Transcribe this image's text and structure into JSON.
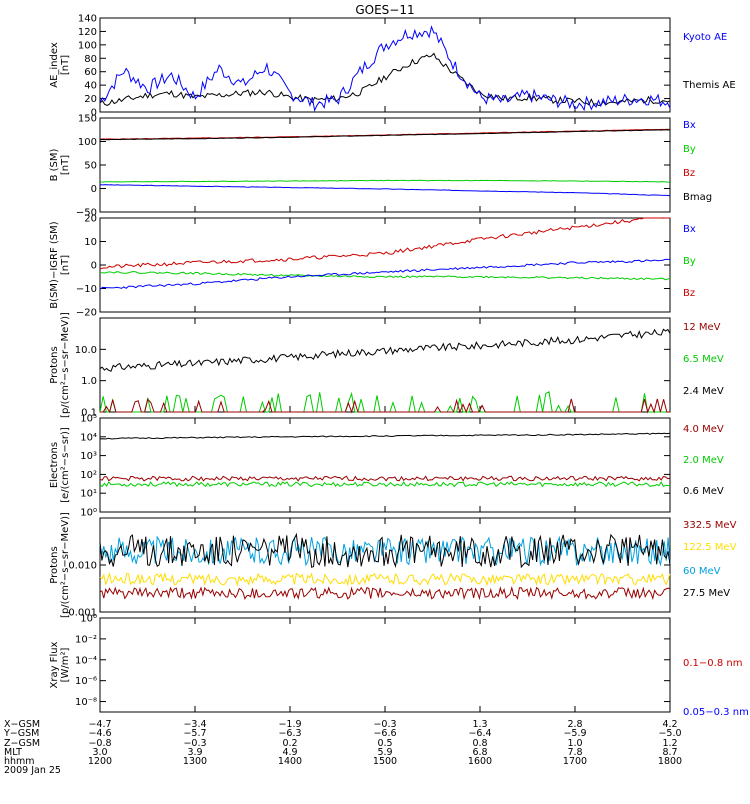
{
  "title": "GOES−11",
  "panels": [
    {
      "id": "ae",
      "ylabel": [
        "AE_index",
        "[nT]"
      ],
      "scale": "linear",
      "ylim": [
        0,
        140
      ],
      "ticks": [
        0,
        20,
        40,
        60,
        80,
        100,
        120,
        140
      ],
      "tick_labels": [
        "0",
        "20",
        "40",
        "60",
        "80",
        "100",
        "120",
        "140"
      ],
      "legend": [
        {
          "label": "Kyoto AE",
          "color": "#0000ff"
        },
        {
          "label": "Themis AE",
          "color": "#000000"
        }
      ]
    },
    {
      "id": "b",
      "ylabel": [
        "B (SM)",
        "[nT]"
      ],
      "scale": "linear",
      "ylim": [
        -50,
        150
      ],
      "ticks": [
        -50,
        0,
        50,
        100,
        150
      ],
      "tick_labels": [
        "−50",
        "0",
        "50",
        "100",
        "150"
      ],
      "legend": [
        {
          "label": "Bx",
          "color": "#0000ff"
        },
        {
          "label": "By",
          "color": "#00cc00"
        },
        {
          "label": "Bz",
          "color": "#cc0000"
        },
        {
          "label": "Bmag",
          "color": "#000000"
        }
      ]
    },
    {
      "id": "bdiff",
      "ylabel": [
        "B(SM)−IGRF (SM)",
        "[nT]"
      ],
      "scale": "linear",
      "ylim": [
        -20,
        20
      ],
      "ticks": [
        -20,
        -10,
        0,
        10,
        20
      ],
      "tick_labels": [
        "−20",
        "−10",
        "0",
        "10",
        "20"
      ],
      "legend": [
        {
          "label": "Bx",
          "color": "#0000ff"
        },
        {
          "label": "By",
          "color": "#00cc00"
        },
        {
          "label": "Bz",
          "color": "#cc0000"
        }
      ]
    },
    {
      "id": "protons1",
      "ylabel": [
        "Protons",
        "[p/(cm²−s−sr−MeV)]"
      ],
      "scale": "log",
      "ylim": [
        0.1,
        100
      ],
      "ticks": [
        0.1,
        1,
        10
      ],
      "tick_labels": [
        "0.1",
        "1.0",
        "10.0"
      ],
      "legend": [
        {
          "label": "12 MeV",
          "color": "#990000"
        },
        {
          "label": "6.5 MeV",
          "color": "#00cc00"
        },
        {
          "label": "2.4 MeV",
          "color": "#000000"
        }
      ]
    },
    {
      "id": "electrons",
      "ylabel": [
        "Electrons",
        "[e/(cm²−s−sr)]"
      ],
      "scale": "log",
      "ylim": [
        1,
        100000
      ],
      "ticks": [
        1,
        10,
        100,
        1000,
        10000,
        100000
      ],
      "tick_labels": [
        "10⁰",
        "10¹",
        "10²",
        "10³",
        "10⁴",
        "10⁵"
      ],
      "legend": [
        {
          "label": "4.0 MeV",
          "color": "#990000"
        },
        {
          "label": "2.0 MeV",
          "color": "#00cc00"
        },
        {
          "label": "0.6 MeV",
          "color": "#000000"
        }
      ]
    },
    {
      "id": "protons2",
      "ylabel": [
        "Protons",
        "[p/(cm²−s−sr−MeV)]"
      ],
      "scale": "log",
      "ylim": [
        0.001,
        0.1
      ],
      "ticks": [
        0.001,
        0.01
      ],
      "tick_labels": [
        "0.001",
        "0.010"
      ],
      "legend": [
        {
          "label": "332.5 MeV",
          "color": "#990000"
        },
        {
          "label": "122.5 MeV",
          "color": "#ffdd00"
        },
        {
          "label": "60 MeV",
          "color": "#00a0e0"
        },
        {
          "label": "27.5 MeV",
          "color": "#000000"
        }
      ]
    },
    {
      "id": "xray",
      "ylabel": [
        "Xray Flux",
        "[W/m²]"
      ],
      "scale": "log",
      "ylim": [
        1e-09,
        1
      ],
      "ticks": [
        1,
        0.01,
        0.0001,
        1e-06,
        1e-08
      ],
      "tick_labels": [
        "10⁰",
        "10⁻²",
        "10⁻⁴",
        "10⁻⁶",
        "10⁻⁸"
      ],
      "legend": [
        {
          "label": "0.1−0.8 nm",
          "color": "#cc0000"
        },
        {
          "label": "0.05−0.3 nm",
          "color": "#0000ff"
        }
      ]
    }
  ],
  "orbit_table": {
    "row_labels": [
      "X−GSM",
      "Y−GSM",
      "Z−GSM",
      "MLT",
      "hhmm"
    ],
    "columns": [
      [
        "−4.7",
        "−4.6",
        "−0.8",
        "3.0",
        "1200"
      ],
      [
        "−3.4",
        "−5.7",
        "−0.3",
        "3.9",
        "1300"
      ],
      [
        "−1.9",
        "−6.3",
        "0.2",
        "4.9",
        "1400"
      ],
      [
        "−0.3",
        "−6.6",
        "0.5",
        "5.9",
        "1500"
      ],
      [
        "1.3",
        "−6.4",
        "0.8",
        "6.8",
        "1600"
      ],
      [
        "2.8",
        "−5.9",
        "1.0",
        "7.8",
        "1700"
      ],
      [
        "4.2",
        "−5.0",
        "1.2",
        "8.7",
        "1800"
      ]
    ],
    "date": "2009 Jan 25"
  },
  "chart_data": {
    "type": "line",
    "x_label": "hhmm",
    "x_range": [
      "1200",
      "1800"
    ],
    "ae": {
      "x": [
        "1200",
        "1215",
        "1230",
        "1245",
        "1300",
        "1315",
        "1330",
        "1345",
        "1400",
        "1415",
        "1430",
        "1445",
        "1500",
        "1515",
        "1530",
        "1545",
        "1600",
        "1615",
        "1630",
        "1645",
        "1700",
        "1715",
        "1730",
        "1745",
        "1800"
      ],
      "kyoto": [
        15,
        62,
        35,
        55,
        22,
        65,
        40,
        68,
        28,
        12,
        18,
        62,
        100,
        118,
        122,
        65,
        22,
        15,
        25,
        18,
        12,
        14,
        18,
        20,
        15
      ],
      "themis": [
        12,
        18,
        25,
        28,
        22,
        25,
        28,
        30,
        22,
        18,
        20,
        30,
        52,
        72,
        85,
        55,
        28,
        20,
        22,
        18,
        16,
        14,
        15,
        18,
        17
      ]
    },
    "b": {
      "x": [
        "1200",
        "1300",
        "1400",
        "1500",
        "1600",
        "1700",
        "1800"
      ],
      "bx": [
        104,
        106,
        109,
        113,
        117,
        121,
        125
      ],
      "by": [
        14,
        15,
        16,
        17,
        17,
        16,
        14
      ],
      "bz": [
        105,
        107,
        110,
        114,
        118,
        122,
        126
      ],
      "bmag": [
        8,
        5,
        2,
        -1,
        -5,
        -9,
        -15
      ]
    },
    "bdiff": {
      "x": [
        "1200",
        "1300",
        "1400",
        "1500",
        "1600",
        "1700",
        "1800"
      ],
      "bx": [
        -10,
        -8,
        -5,
        -3,
        -1,
        1,
        2
      ],
      "by": [
        -3,
        -3.5,
        -4.5,
        -5,
        -5,
        -5.5,
        -6
      ],
      "bz": [
        -1,
        1,
        2.5,
        5,
        11,
        16,
        21
      ]
    },
    "protons1": {
      "x": [
        "1200",
        "1300",
        "1400",
        "1500",
        "1600",
        "1700",
        "1800"
      ],
      "p24": [
        2.5,
        3.5,
        5.5,
        9,
        13,
        20,
        35
      ],
      "p65": [
        0.1,
        0.1,
        0.1,
        0.1,
        0.1,
        0.1,
        0.1
      ],
      "p12": [
        0.1,
        0.1,
        0.1,
        0.1,
        0.1,
        0.1,
        0.1
      ]
    },
    "electrons": {
      "x": [
        "1200",
        "1300",
        "1400",
        "1500",
        "1600",
        "1700",
        "1800"
      ],
      "e06": [
        8000,
        9000,
        10000,
        11000,
        12000,
        13000,
        15000
      ],
      "e20": [
        30,
        30,
        30,
        30,
        30,
        30,
        30
      ],
      "e40": [
        60,
        60,
        60,
        60,
        60,
        60,
        60
      ]
    },
    "protons2": {
      "x": [
        "1200",
        "1300",
        "1400",
        "1500",
        "1600",
        "1700",
        "1800"
      ],
      "p275": [
        0.02,
        0.02,
        0.02,
        0.02,
        0.02,
        0.02,
        0.02
      ],
      "p60": [
        0.02,
        0.02,
        0.02,
        0.02,
        0.02,
        0.02,
        0.02
      ],
      "p1225": [
        0.005,
        0.005,
        0.005,
        0.005,
        0.005,
        0.005,
        0.005
      ],
      "p3325": [
        0.0025,
        0.0025,
        0.0025,
        0.0025,
        0.0025,
        0.0025,
        0.0025
      ]
    }
  }
}
